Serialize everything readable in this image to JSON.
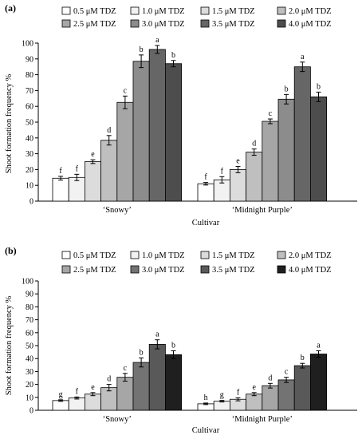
{
  "chart_data": [
    {
      "panel_label": "(a)",
      "type": "bar",
      "categories": [
        "‘Snowy’",
        "‘Midnight Purple’"
      ],
      "xlabel": "Cultivar",
      "ylabel": "Shoot formation frequency %",
      "ylim": [
        0,
        100
      ],
      "yticks": [
        0,
        10,
        20,
        30,
        40,
        50,
        60,
        70,
        80,
        90,
        100
      ],
      "grid": false,
      "legend_position": "top",
      "series": [
        {
          "name": "0.5 μM TDZ",
          "color": "#ffffff",
          "values": [
            14.5,
            11.0
          ],
          "errors": [
            1.2,
            0.8
          ],
          "letters": [
            "f",
            "f"
          ]
        },
        {
          "name": "1.0 μM TDZ",
          "color": "#f2f2f2",
          "values": [
            15.0,
            13.5
          ],
          "errors": [
            2.0,
            2.0
          ],
          "letters": [
            "f",
            "f"
          ]
        },
        {
          "name": "1.5 μM TDZ",
          "color": "#dcdcdc",
          "values": [
            25.0,
            20.0
          ],
          "errors": [
            1.2,
            2.0
          ],
          "letters": [
            "e",
            "e"
          ]
        },
        {
          "name": "2.0 μM TDZ",
          "color": "#bfbfbf",
          "values": [
            38.5,
            31.0
          ],
          "errors": [
            3.0,
            2.0
          ],
          "letters": [
            "d",
            "d"
          ]
        },
        {
          "name": "2.5 μM TDZ",
          "color": "#a6a6a6",
          "values": [
            62.5,
            50.5
          ],
          "errors": [
            4.0,
            1.5
          ],
          "letters": [
            "c",
            "c"
          ]
        },
        {
          "name": "3.0 μM TDZ",
          "color": "#8c8c8c",
          "values": [
            88.5,
            64.5
          ],
          "errors": [
            4.0,
            3.0
          ],
          "letters": [
            "b",
            "b"
          ]
        },
        {
          "name": "3.5 μM TDZ",
          "color": "#666666",
          "values": [
            96.0,
            85.0
          ],
          "errors": [
            2.5,
            3.0
          ],
          "letters": [
            "a",
            "a"
          ]
        },
        {
          "name": "4.0 μM TDZ",
          "color": "#4d4d4d",
          "values": [
            87.0,
            66.0
          ],
          "errors": [
            2.0,
            3.0
          ],
          "letters": [
            "b",
            "b"
          ]
        }
      ]
    },
    {
      "panel_label": "(b)",
      "type": "bar",
      "categories": [
        "‘Snowy’",
        "‘Midnight Purple’"
      ],
      "xlabel": "Cultivar",
      "ylabel": "Shoot formation frequency %",
      "ylim": [
        0,
        100
      ],
      "yticks": [
        0,
        10,
        20,
        30,
        40,
        50,
        60,
        70,
        80,
        90,
        100
      ],
      "grid": false,
      "legend_position": "top",
      "series": [
        {
          "name": "0.5 μM TDZ",
          "color": "#ffffff",
          "values": [
            7.5,
            5.0
          ],
          "errors": [
            0.6,
            0.6
          ],
          "letters": [
            "g",
            "h"
          ]
        },
        {
          "name": "1.0 μM TDZ",
          "color": "#f2f2f2",
          "values": [
            9.5,
            7.0
          ],
          "errors": [
            0.8,
            0.6
          ],
          "letters": [
            "f",
            "g"
          ]
        },
        {
          "name": "1.5 μM TDZ",
          "color": "#dcdcdc",
          "values": [
            12.5,
            8.5
          ],
          "errors": [
            1.2,
            1.2
          ],
          "letters": [
            "e",
            "f"
          ]
        },
        {
          "name": "2.0 μM TDZ",
          "color": "#bfbfbf",
          "values": [
            17.5,
            12.5
          ],
          "errors": [
            2.5,
            1.2
          ],
          "letters": [
            "d",
            "e"
          ]
        },
        {
          "name": "2.5 μM TDZ",
          "color": "#a6a6a6",
          "values": [
            25.5,
            19.0
          ],
          "errors": [
            3.0,
            1.8
          ],
          "letters": [
            "c",
            "d"
          ]
        },
        {
          "name": "3.0 μM TDZ",
          "color": "#737373",
          "values": [
            37.0,
            23.5
          ],
          "errors": [
            3.5,
            2.0
          ],
          "letters": [
            "b",
            "c"
          ]
        },
        {
          "name": "3.5 μM TDZ",
          "color": "#595959",
          "values": [
            51.0,
            34.5
          ],
          "errors": [
            3.5,
            1.8
          ],
          "letters": [
            "a",
            "b"
          ]
        },
        {
          "name": "4.0 μM TDZ",
          "color": "#1f1f1f",
          "values": [
            43.0,
            43.5
          ],
          "errors": [
            3.0,
            2.5
          ],
          "letters": [
            "b",
            "a"
          ]
        }
      ]
    }
  ]
}
